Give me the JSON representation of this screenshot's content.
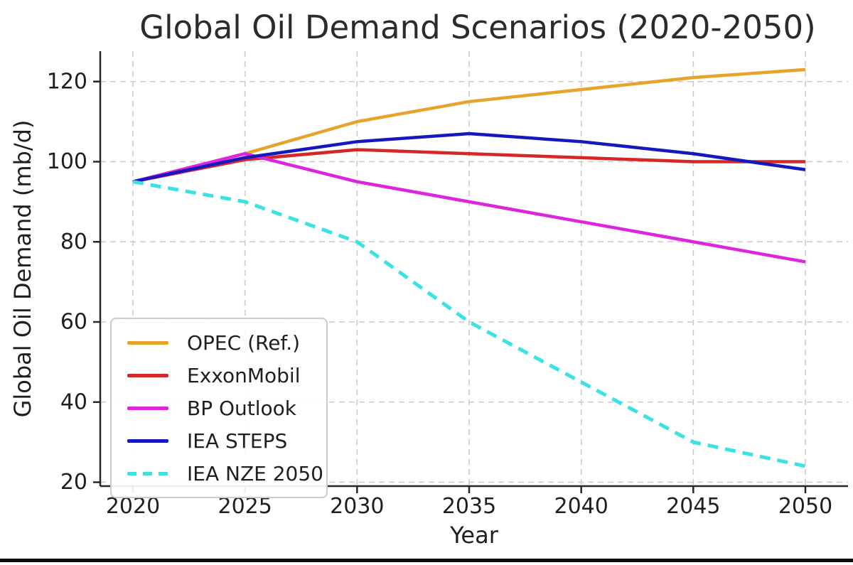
{
  "chart_data": {
    "type": "line",
    "title": "Global Oil Demand Scenarios (2020-2050)",
    "xlabel": "Year",
    "ylabel": "Global Oil Demand (mb/d)",
    "x": [
      2020,
      2025,
      2030,
      2035,
      2040,
      2045,
      2050
    ],
    "x_tick_labels": [
      "2020",
      "2025",
      "2030",
      "2035",
      "2040",
      "2045",
      "2050"
    ],
    "y_ticks": [
      20,
      40,
      60,
      80,
      100,
      120
    ],
    "y_tick_labels": [
      "20",
      "40",
      "60",
      "80",
      "100",
      "120"
    ],
    "xlim": [
      2018.5,
      2051.9
    ],
    "ylim": [
      19,
      128
    ],
    "grid": true,
    "grid_style": "dashed",
    "legend_position": "lower left",
    "series": [
      {
        "name": "OPEC (Ref.)",
        "color": "#E6A42B",
        "style": "solid",
        "values": [
          95,
          102,
          110,
          115,
          118,
          121,
          123
        ]
      },
      {
        "name": "ExxonMobil",
        "color": "#D62728",
        "style": "solid",
        "values": [
          95,
          100.5,
          103,
          102,
          101,
          100,
          100
        ]
      },
      {
        "name": "BP Outlook",
        "color": "#DE25DE",
        "style": "solid",
        "values": [
          95,
          102,
          95,
          90,
          85,
          80,
          75
        ]
      },
      {
        "name": "IEA STEPS",
        "color": "#1717C0",
        "style": "solid",
        "values": [
          95,
          101,
          105,
          107,
          105,
          102,
          98
        ]
      },
      {
        "name": "IEA NZE 2050",
        "color": "#3BE2E2",
        "style": "dashed",
        "values": [
          95,
          90,
          80,
          60,
          45,
          30,
          24
        ]
      }
    ]
  }
}
